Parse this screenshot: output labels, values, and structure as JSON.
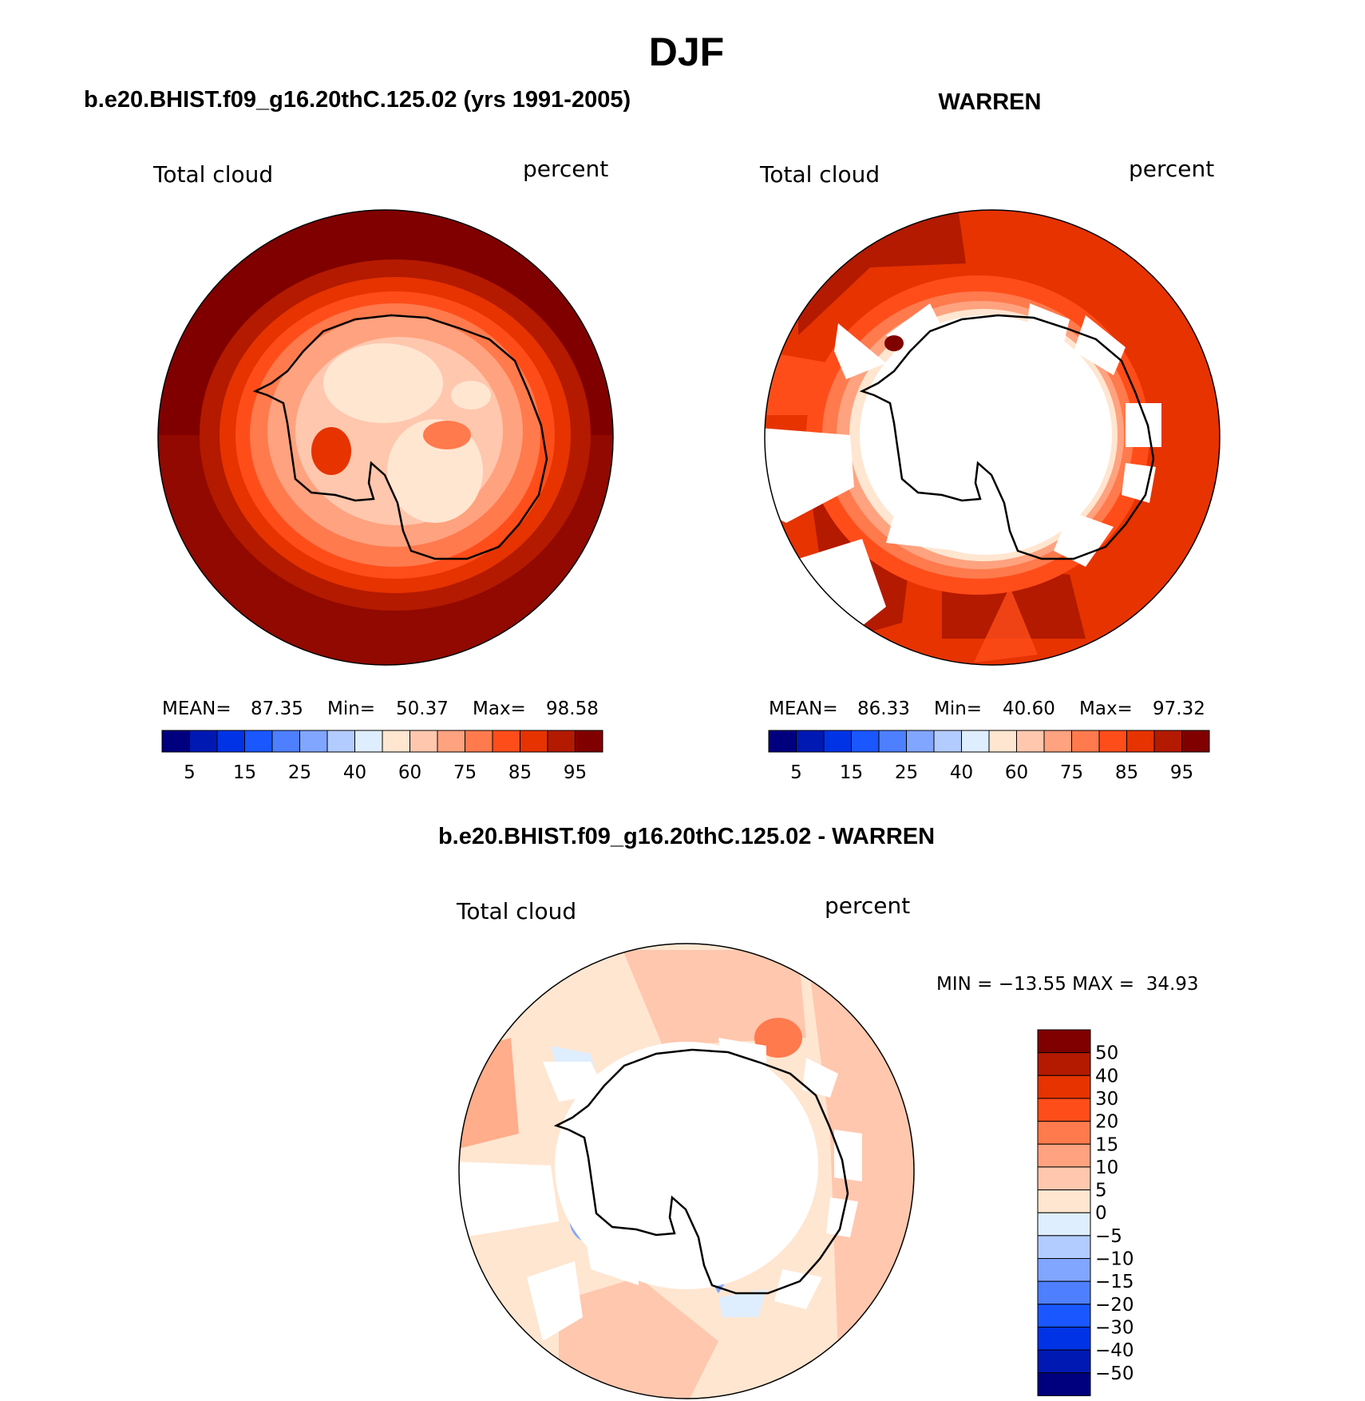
{
  "page_title": "DJF",
  "panels": {
    "model": {
      "title": "b.e20.BHIST.f09_g16.20thC.125.02 (yrs 1991-2005)",
      "variable": "Total cloud",
      "units": "percent",
      "stats": {
        "mean_label": "MEAN=",
        "mean": "87.35",
        "min_label": "Min=",
        "min": "50.37",
        "max_label": "Max=",
        "max": "98.58"
      },
      "colorbar_ticks": [
        "5",
        "15",
        "25",
        "40",
        "60",
        "75",
        "85",
        "95"
      ]
    },
    "obs": {
      "title": "WARREN",
      "variable": "Total cloud",
      "units": "percent",
      "stats": {
        "mean_label": "MEAN=",
        "mean": "86.33",
        "min_label": "Min=",
        "min": "40.60",
        "max_label": "Max=",
        "max": "97.32"
      },
      "colorbar_ticks": [
        "5",
        "15",
        "25",
        "40",
        "60",
        "75",
        "85",
        "95"
      ]
    },
    "diff": {
      "title": "b.e20.BHIST.f09_g16.20thC.125.02 - WARREN",
      "variable": "Total cloud",
      "units": "percent",
      "minmax": "MIN = −13.55 MAX =  34.93",
      "colorbar_ticks": [
        "50",
        "40",
        "30",
        "20",
        "15",
        "10",
        "5",
        "0",
        "−5",
        "−10",
        "−15",
        "−20",
        "−30",
        "−40",
        "−50"
      ]
    }
  },
  "colors": {
    "abs_scale": [
      "#00007f",
      "#0019b3",
      "#0033e6",
      "#1a57ff",
      "#4d7fff",
      "#80a6ff",
      "#b3ccff",
      "#dfeeff",
      "#ffe6d1",
      "#ffc7ae",
      "#ffa27f",
      "#ff7a4d",
      "#ff4d1a",
      "#e63300",
      "#b31a00",
      "#800000"
    ],
    "diff_scale": [
      "#800000",
      "#b31a00",
      "#e63300",
      "#ff4d1a",
      "#ff7a4d",
      "#ffa27f",
      "#ffc7ae",
      "#ffe6d1",
      "#dfeeff",
      "#b3ccff",
      "#80a6ff",
      "#4d7fff",
      "#1a57ff",
      "#0033e6",
      "#0019b3",
      "#00007f"
    ]
  }
}
